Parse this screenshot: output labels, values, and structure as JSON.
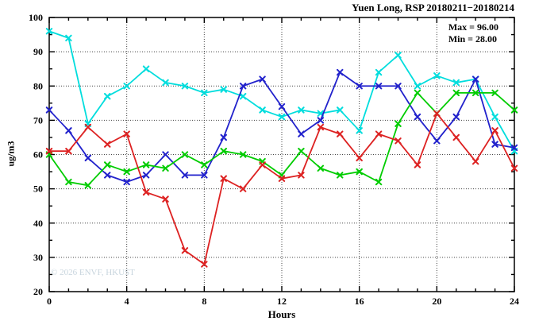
{
  "chart_data": {
    "type": "line",
    "title": "Yuen Long, RSP 20180211−20180214",
    "xlabel": "Hours",
    "ylabel": "ug/m3",
    "legend_lines": [
      "Max = 96.00",
      "Min = 28.00"
    ],
    "watermark": "© 2026 ENVF, HKUST",
    "xlim": [
      0,
      24
    ],
    "ylim": [
      20,
      100
    ],
    "x_major_ticks": [
      0,
      4,
      8,
      12,
      16,
      20,
      24
    ],
    "x_minor_step": 1,
    "y_major_ticks": [
      20,
      30,
      40,
      50,
      60,
      70,
      80,
      90,
      100
    ],
    "y_minor_step": 5,
    "grid": "dotted-at-major-ticks",
    "legend_position": "top-right-inside",
    "marker": "x-cross",
    "axis_color": "#000000",
    "grid_color": "#444444",
    "x": [
      0,
      1,
      2,
      3,
      4,
      5,
      6,
      7,
      8,
      9,
      10,
      11,
      12,
      13,
      14,
      15,
      16,
      17,
      18,
      19,
      20,
      21,
      22,
      23,
      24
    ],
    "series": [
      {
        "name": "day-20180211-cyan",
        "color": "#00DDDD",
        "values": [
          96,
          94,
          69,
          77,
          80,
          85,
          81,
          80,
          78,
          79,
          77,
          73,
          71,
          73,
          72,
          73,
          67,
          84,
          89,
          80,
          83,
          81,
          82,
          71,
          61
        ]
      },
      {
        "name": "day-20180212-blue",
        "color": "#2222CC",
        "values": [
          73,
          67,
          59,
          54,
          52,
          54,
          60,
          54,
          54,
          65,
          80,
          82,
          74,
          66,
          70,
          84,
          80,
          80,
          80,
          71,
          64,
          71,
          82,
          63,
          62
        ]
      },
      {
        "name": "day-20180213-green",
        "color": "#00CC00",
        "values": [
          60,
          52,
          51,
          57,
          55,
          57,
          56,
          60,
          57,
          61,
          60,
          58,
          54,
          61,
          56,
          54,
          55,
          52,
          69,
          78,
          72,
          78,
          78,
          78,
          73
        ]
      },
      {
        "name": "day-20180214-red",
        "color": "#DD2222",
        "values": [
          61,
          61,
          68,
          63,
          66,
          49,
          47,
          32,
          28,
          53,
          50,
          57,
          53,
          54,
          68,
          66,
          59,
          66,
          64,
          57,
          72,
          65,
          58,
          67,
          56
        ]
      }
    ]
  }
}
